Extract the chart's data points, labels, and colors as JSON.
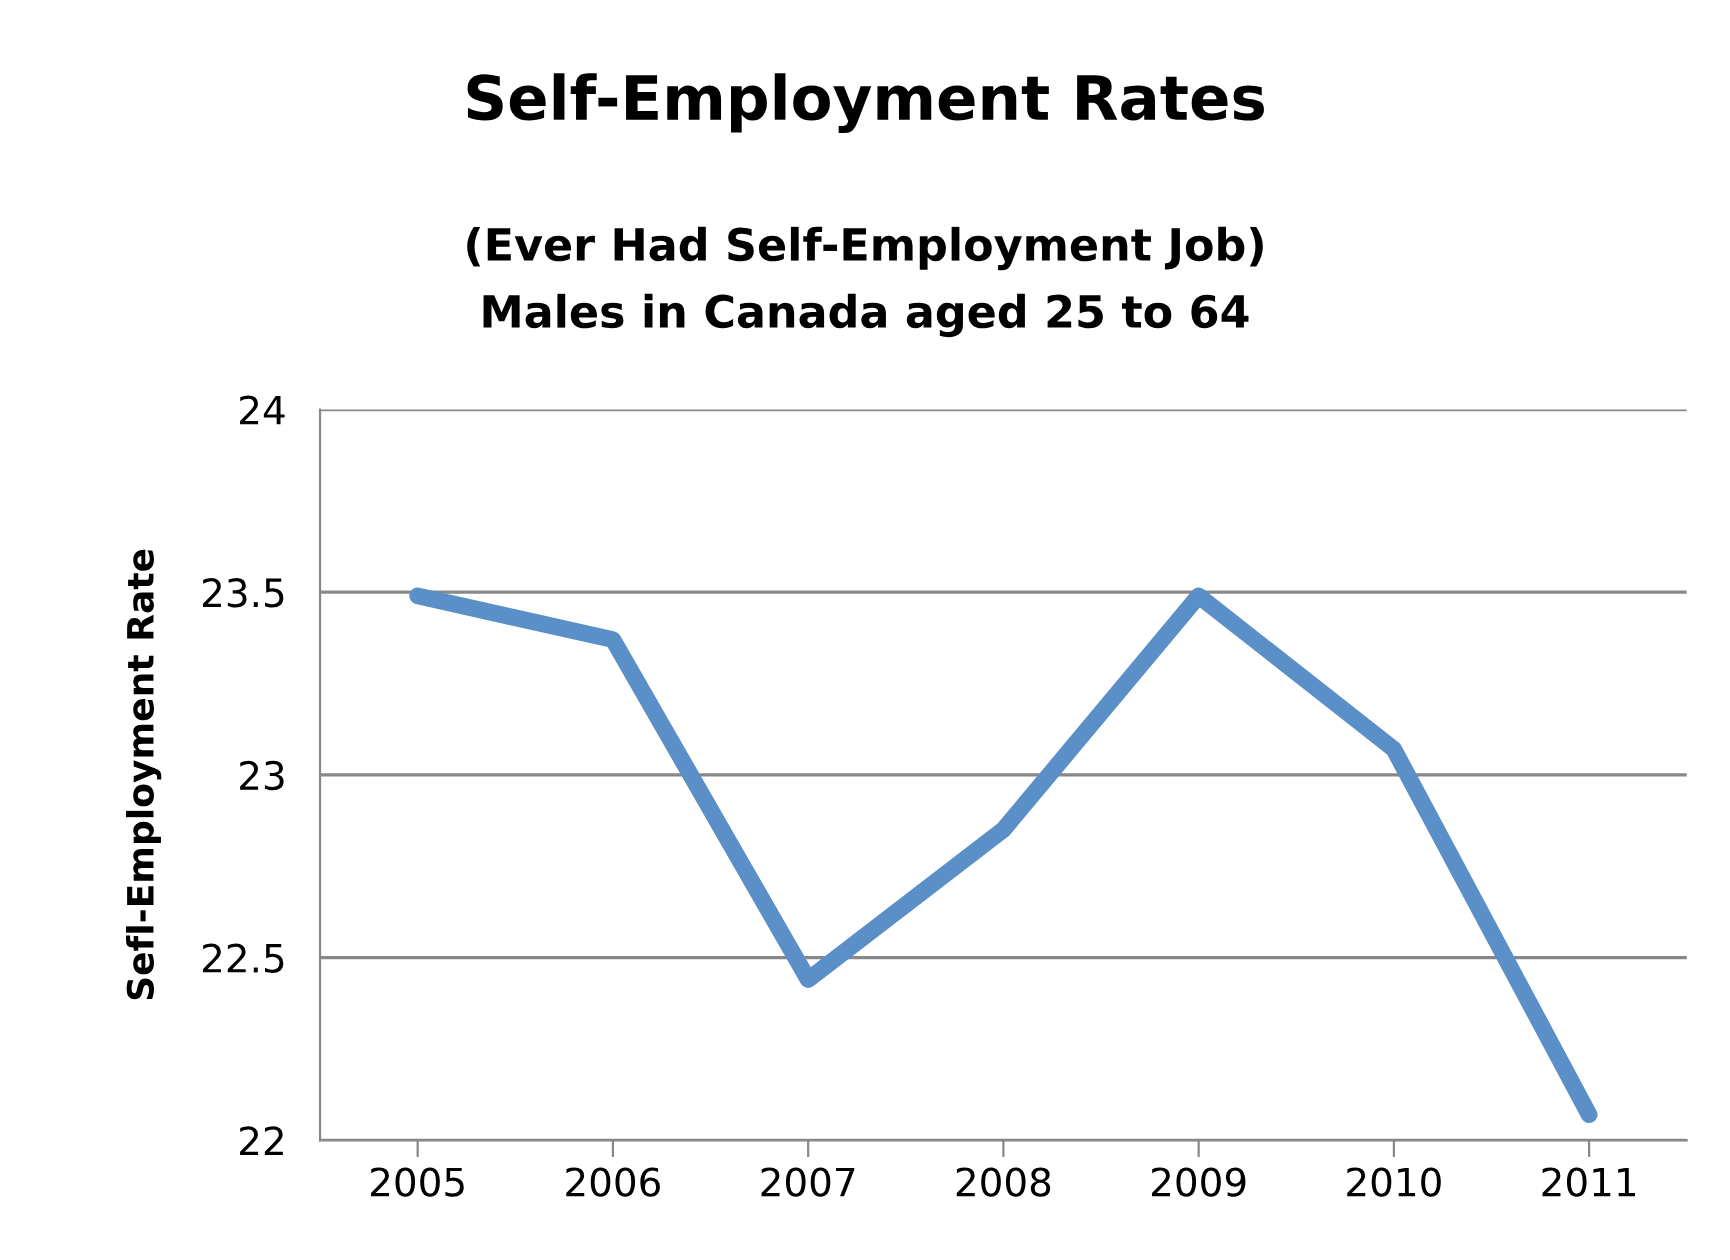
{
  "chart_data": {
    "type": "line",
    "title": "Self-Employment Rates",
    "subtitle": "(Ever Had Self-Employment Job)\nMales in Canada aged 25 to 64",
    "ylabel": "Sefl-Employment Rate",
    "categories": [
      "2005",
      "2006",
      "2007",
      "2008",
      "2009",
      "2010",
      "2011"
    ],
    "series": [
      {
        "color": "#5b8fc7",
        "values": [
          23.49,
          23.37,
          22.44,
          22.85,
          23.49,
          23.07,
          22.07
        ]
      }
    ],
    "ylim": [
      22,
      24
    ],
    "yticks": [
      22,
      22.5,
      23,
      23.5,
      24
    ],
    "grid": "y",
    "marker": "none",
    "line_style": "solid",
    "legend": false
  }
}
